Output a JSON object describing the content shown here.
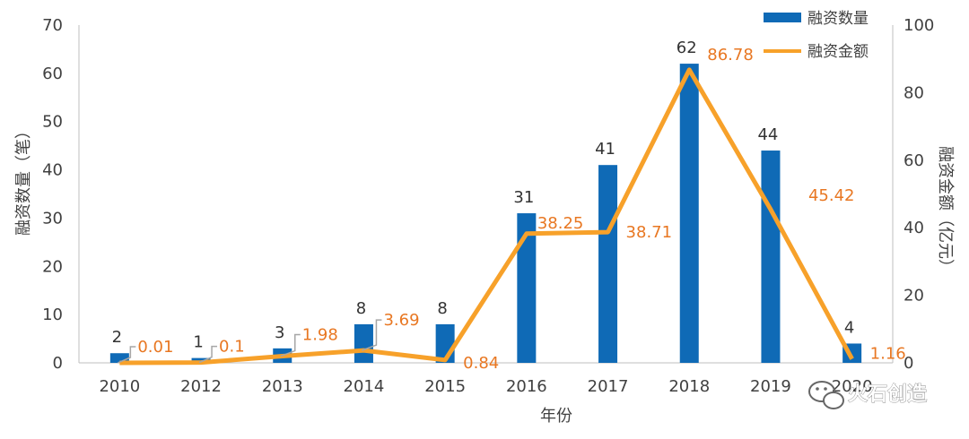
{
  "chart_data": {
    "type": "bar",
    "categories": [
      "2010",
      "2012",
      "2013",
      "2014",
      "2015",
      "2016",
      "2017",
      "2018",
      "2019",
      "2020"
    ],
    "series": [
      {
        "name": "融资数量",
        "type": "bar",
        "axis": "left",
        "color": "#0f6ab6",
        "values": [
          2,
          1,
          3,
          8,
          8,
          31,
          41,
          62,
          44,
          4
        ],
        "labels": [
          "2",
          "1",
          "3",
          "8",
          "8",
          "31",
          "41",
          "62",
          "44",
          "4"
        ]
      },
      {
        "name": "融资金额",
        "type": "line",
        "axis": "right",
        "color": "#f7a12a",
        "values": [
          0.01,
          0.1,
          1.98,
          3.69,
          0.84,
          38.25,
          38.71,
          86.78,
          45.42,
          1.16
        ],
        "labels": [
          "0.01",
          "0.1",
          "1.98",
          "3.69",
          "0.84",
          "38.25",
          "38.71",
          "86.78",
          "45.42",
          "1.16"
        ]
      }
    ],
    "xlabel": "年份",
    "ylabel": "融资数量（笔）",
    "y2label": "融资金额（亿元）",
    "ylim": [
      0,
      70
    ],
    "y2lim": [
      0,
      100
    ],
    "yticks": [
      "0",
      "10",
      "20",
      "30",
      "40",
      "50",
      "60",
      "70"
    ],
    "y2ticks": [
      "0",
      "20",
      "40",
      "60",
      "80",
      "100"
    ],
    "grid": false,
    "legend": "top-right",
    "label_color": "#e87722"
  },
  "watermark": {
    "text": "火石创造"
  }
}
